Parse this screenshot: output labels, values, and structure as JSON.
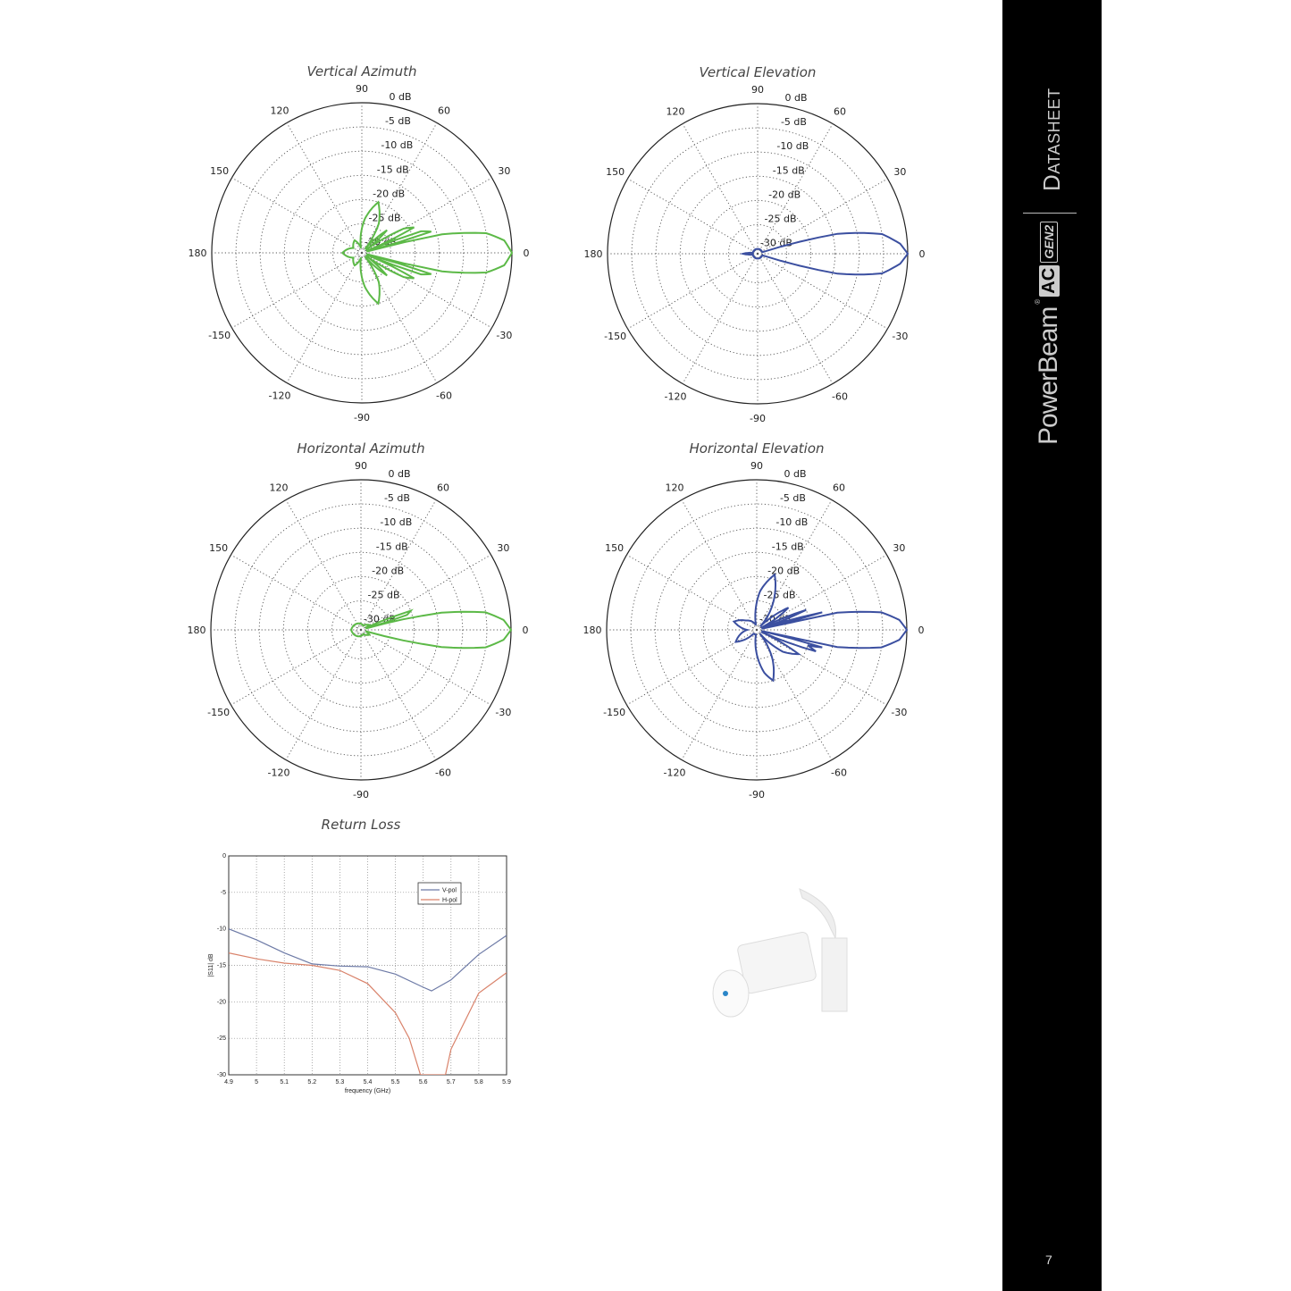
{
  "sidebar": {
    "doc_type": "Datasheet",
    "brand": {
      "name": "PowerBeam",
      "reg": "®",
      "badge_ac": "AC",
      "badge_gen": "GEN2"
    },
    "page_number": "7"
  },
  "polar_common": {
    "angle_ticks": [
      0,
      30,
      60,
      90,
      120,
      150,
      180,
      -150,
      -120,
      -90,
      -60,
      -30
    ],
    "radial_ticks": [
      "0 dB",
      "-5 dB",
      "-10 dB",
      "-15 dB",
      "-20 dB",
      "-25 dB",
      "-30 dB"
    ],
    "radial_values": [
      0,
      -5,
      -10,
      -15,
      -20,
      -25,
      -30
    ],
    "rlim": [
      -31,
      0
    ]
  },
  "chart_data": [
    {
      "type": "polar",
      "title": "Vertical Azimuth",
      "color": "#5cb947",
      "points": [
        [
          -180,
          -27
        ],
        [
          -150,
          -29
        ],
        [
          -120,
          -28
        ],
        [
          -100,
          -30
        ],
        [
          -85,
          -24
        ],
        [
          -72,
          -20
        ],
        [
          -60,
          -24
        ],
        [
          -50,
          -30
        ],
        [
          -42,
          -24
        ],
        [
          -36,
          -30
        ],
        [
          -30,
          -21
        ],
        [
          -26,
          -19
        ],
        [
          -22,
          -30
        ],
        [
          -20,
          -18
        ],
        [
          -17,
          -16
        ],
        [
          -15,
          -30
        ],
        [
          -13,
          -14
        ],
        [
          -9,
          -5
        ],
        [
          -5,
          -1.5
        ],
        [
          0,
          0
        ],
        [
          5,
          -1.5
        ],
        [
          9,
          -5
        ],
        [
          13,
          -14
        ],
        [
          15,
          -30
        ],
        [
          17,
          -16
        ],
        [
          20,
          -18
        ],
        [
          22,
          -30
        ],
        [
          26,
          -19
        ],
        [
          30,
          -21
        ],
        [
          36,
          -30
        ],
        [
          42,
          -24
        ],
        [
          50,
          -30
        ],
        [
          60,
          -24
        ],
        [
          72,
          -20
        ],
        [
          85,
          -24
        ],
        [
          100,
          -30
        ],
        [
          120,
          -28
        ],
        [
          150,
          -29
        ],
        [
          180,
          -27
        ]
      ]
    },
    {
      "type": "polar",
      "title": "Vertical Elevation",
      "color": "#3b4fa0",
      "points": [
        [
          -180,
          -28
        ],
        [
          -170,
          -30
        ],
        [
          -30,
          -30
        ],
        [
          -18,
          -30
        ],
        [
          -14,
          -14
        ],
        [
          -9,
          -5
        ],
        [
          -4,
          -1.5
        ],
        [
          0,
          0
        ],
        [
          4,
          -1.5
        ],
        [
          9,
          -5
        ],
        [
          14,
          -14
        ],
        [
          18,
          -30
        ],
        [
          30,
          -30
        ],
        [
          170,
          -30
        ],
        [
          180,
          -28
        ]
      ]
    },
    {
      "type": "polar",
      "title": "Horizontal Azimuth",
      "color": "#5cb947",
      "points": [
        [
          -180,
          -29
        ],
        [
          -60,
          -30
        ],
        [
          -30,
          -29
        ],
        [
          -16,
          -30
        ],
        [
          -12,
          -14
        ],
        [
          -8,
          -5
        ],
        [
          -4,
          -1.5
        ],
        [
          0,
          0
        ],
        [
          4,
          -1.5
        ],
        [
          8,
          -5
        ],
        [
          12,
          -14
        ],
        [
          16,
          -30
        ],
        [
          18,
          -21
        ],
        [
          21,
          -20
        ],
        [
          24,
          -30
        ],
        [
          30,
          -29
        ],
        [
          60,
          -30
        ],
        [
          180,
          -29
        ]
      ]
    },
    {
      "type": "polar",
      "title": "Horizontal Elevation",
      "color": "#3b4fa0",
      "points": [
        [
          -180,
          -29
        ],
        [
          -150,
          -26
        ],
        [
          -130,
          -30
        ],
        [
          -100,
          -30
        ],
        [
          -80,
          -22
        ],
        [
          -72,
          -20
        ],
        [
          -62,
          -24
        ],
        [
          -50,
          -30
        ],
        [
          -40,
          -24
        ],
        [
          -30,
          -21
        ],
        [
          -24,
          -30
        ],
        [
          -20,
          -18
        ],
        [
          -17,
          -20
        ],
        [
          -15,
          -17
        ],
        [
          -13,
          -30
        ],
        [
          -12,
          -14
        ],
        [
          -8,
          -5
        ],
        [
          -4,
          -1.5
        ],
        [
          0,
          0
        ],
        [
          4,
          -1.5
        ],
        [
          8,
          -5
        ],
        [
          12,
          -14
        ],
        [
          13,
          -30
        ],
        [
          15,
          -17
        ],
        [
          18,
          -30
        ],
        [
          22,
          -20
        ],
        [
          26,
          -30
        ],
        [
          35,
          -23
        ],
        [
          45,
          -30
        ],
        [
          60,
          -24
        ],
        [
          72,
          -19
        ],
        [
          85,
          -23
        ],
        [
          100,
          -30
        ],
        [
          140,
          -28
        ],
        [
          160,
          -26
        ],
        [
          180,
          -29
        ]
      ]
    },
    {
      "type": "line",
      "title": "Return Loss",
      "xlabel": "frequency (GHz)",
      "ylabel": "|S11| dB",
      "xlim": [
        4.9,
        5.9
      ],
      "ylim": [
        -30,
        0
      ],
      "grid": true,
      "legend": "top-right",
      "xticks": [
        "4.9",
        "5",
        "5.1",
        "5.2",
        "5.3",
        "5.4",
        "5.5",
        "5.6",
        "5.7",
        "5.8",
        "5.9"
      ],
      "yticks": [
        "0",
        "-5",
        "-10",
        "-15",
        "-20",
        "-25",
        "-30"
      ],
      "series": [
        {
          "name": "V-pol",
          "color": "#6d7aa6",
          "x": [
            4.9,
            5.0,
            5.1,
            5.2,
            5.3,
            5.4,
            5.5,
            5.6,
            5.63,
            5.7,
            5.8,
            5.9
          ],
          "y": [
            -10,
            -11.5,
            -13.3,
            -14.8,
            -15.1,
            -15.2,
            -16.2,
            -18.0,
            -18.5,
            -17,
            -13.5,
            -10.9
          ]
        },
        {
          "name": "H-pol",
          "color": "#d9826a",
          "x": [
            4.9,
            5.0,
            5.1,
            5.2,
            5.3,
            5.4,
            5.5,
            5.55,
            5.59,
            5.68,
            5.7,
            5.8,
            5.9
          ],
          "y": [
            -13.3,
            -14.1,
            -14.7,
            -15.0,
            -15.7,
            -17.5,
            -21.5,
            -25,
            -30,
            -30,
            -26.5,
            -18.8,
            -16
          ]
        }
      ]
    }
  ]
}
